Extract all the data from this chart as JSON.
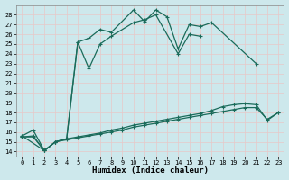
{
  "xlabel": "Humidex (Indice chaleur)",
  "bg_color": "#cde8ec",
  "grid_color": "#e8c8c8",
  "line_color": "#1a6b5a",
  "xlim": [
    -0.5,
    23.5
  ],
  "ylim": [
    13.5,
    29.0
  ],
  "yticks": [
    14,
    15,
    16,
    17,
    18,
    19,
    20,
    21,
    22,
    23,
    24,
    25,
    26,
    27,
    28
  ],
  "xticks": [
    0,
    1,
    2,
    3,
    4,
    5,
    6,
    7,
    8,
    9,
    10,
    11,
    12,
    13,
    14,
    15,
    16,
    17,
    18,
    19,
    20,
    21,
    22,
    23
  ],
  "s1_x": [
    0,
    1,
    2,
    3,
    4,
    5,
    6,
    7,
    8,
    10,
    11,
    12,
    13,
    14,
    15,
    16,
    17,
    21
  ],
  "s1_y": [
    15.6,
    16.2,
    14.1,
    15.0,
    15.3,
    25.2,
    25.6,
    26.5,
    26.2,
    28.5,
    27.3,
    28.5,
    27.8,
    24.5,
    27.0,
    26.8,
    27.2,
    23.0
  ],
  "s2_x": [
    0,
    2,
    3,
    4,
    5,
    6,
    7,
    8,
    10,
    11,
    12,
    14,
    15,
    16
  ],
  "s2_y": [
    15.6,
    14.1,
    15.0,
    15.3,
    25.2,
    22.5,
    25.0,
    25.8,
    27.2,
    27.5,
    28.0,
    24.0,
    26.0,
    25.8
  ],
  "s3_x": [
    0,
    1,
    2,
    3,
    4,
    5,
    6,
    7,
    8,
    9,
    10,
    11,
    12,
    13,
    14,
    15,
    16,
    17,
    18,
    19,
    20,
    21,
    22,
    23
  ],
  "s3_y": [
    15.5,
    15.5,
    14.1,
    15.0,
    15.2,
    15.4,
    15.6,
    15.8,
    16.0,
    16.2,
    16.5,
    16.7,
    16.9,
    17.1,
    17.3,
    17.5,
    17.7,
    17.9,
    18.1,
    18.3,
    18.5,
    18.5,
    17.3,
    18.0
  ],
  "s4_x": [
    0,
    1,
    2,
    3,
    4,
    5,
    6,
    7,
    8,
    9,
    10,
    11,
    12,
    13,
    14,
    15,
    16,
    17,
    18,
    19,
    20,
    21,
    22,
    23
  ],
  "s4_y": [
    15.5,
    15.6,
    14.1,
    15.0,
    15.3,
    15.5,
    15.7,
    15.9,
    16.2,
    16.4,
    16.7,
    16.9,
    17.1,
    17.3,
    17.5,
    17.7,
    17.9,
    18.2,
    18.6,
    18.8,
    18.9,
    18.8,
    17.2,
    18.0
  ]
}
